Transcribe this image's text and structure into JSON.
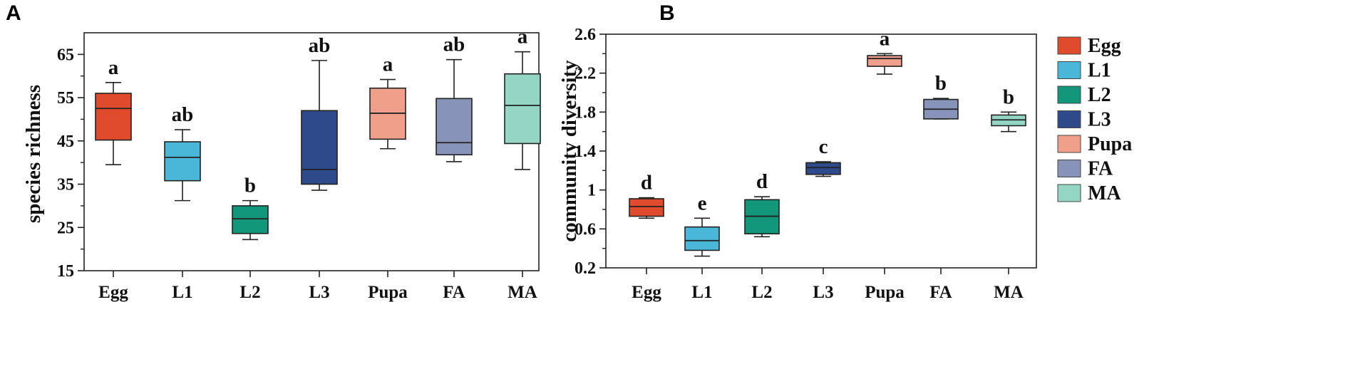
{
  "chart_data": [
    {
      "panel": "A",
      "type": "boxplot",
      "ylabel": "species richness",
      "xlabel": "",
      "ylim": [
        15,
        70
      ],
      "yticks": [
        15,
        25,
        35,
        45,
        55,
        65
      ],
      "ytick_labels": [
        "15",
        "25",
        "35",
        "45",
        "55",
        "65"
      ],
      "categories": [
        "Egg",
        "L1",
        "L2",
        "L3",
        "Pupa",
        "FA",
        "MA"
      ],
      "boxes": [
        {
          "min": 39.5,
          "q1": 45.2,
          "median": 52.5,
          "q3": 56.0,
          "max": 58.5
        },
        {
          "min": 31.2,
          "q1": 35.8,
          "median": 41.2,
          "q3": 44.8,
          "max": 47.6
        },
        {
          "min": 22.2,
          "q1": 23.6,
          "median": 27.0,
          "q3": 30.0,
          "max": 31.2
        },
        {
          "min": 33.6,
          "q1": 35.0,
          "median": 38.4,
          "q3": 52.0,
          "max": 63.6
        },
        {
          "min": 43.2,
          "q1": 45.4,
          "median": 51.4,
          "q3": 57.2,
          "max": 59.2
        },
        {
          "min": 40.2,
          "q1": 41.8,
          "median": 44.6,
          "q3": 54.8,
          "max": 63.8
        },
        {
          "min": 38.4,
          "q1": 44.4,
          "median": 53.2,
          "q3": 60.5,
          "max": 65.6
        }
      ],
      "significance": [
        "a",
        "ab",
        "b",
        "ab",
        "a",
        "ab",
        "a"
      ]
    },
    {
      "panel": "B",
      "type": "boxplot",
      "ylabel": "community diversity",
      "xlabel": "",
      "ylim": [
        0.2,
        2.6
      ],
      "yticks": [
        0.2,
        0.6,
        1.0,
        1.4,
        1.8,
        2.2,
        2.6
      ],
      "ytick_labels": [
        "0.2",
        "0.6",
        "1",
        "1.4",
        "1.8",
        "2.2",
        "2.6"
      ],
      "categories": [
        "Egg",
        "L1",
        "L2",
        "L3",
        "Pupa",
        "FA",
        "MA"
      ],
      "boxes": [
        {
          "min": 0.71,
          "q1": 0.73,
          "median": 0.83,
          "q3": 0.91,
          "max": 0.92
        },
        {
          "min": 0.32,
          "q1": 0.38,
          "median": 0.48,
          "q3": 0.62,
          "max": 0.71
        },
        {
          "min": 0.52,
          "q1": 0.55,
          "median": 0.73,
          "q3": 0.9,
          "max": 0.93
        },
        {
          "min": 1.14,
          "q1": 1.16,
          "median": 1.23,
          "q3": 1.28,
          "max": 1.29
        },
        {
          "min": 2.19,
          "q1": 2.27,
          "median": 2.35,
          "q3": 2.38,
          "max": 2.4
        },
        {
          "min": 1.73,
          "q1": 1.73,
          "median": 1.83,
          "q3": 1.93,
          "max": 1.94
        },
        {
          "min": 1.6,
          "q1": 1.66,
          "median": 1.72,
          "q3": 1.77,
          "max": 1.8
        }
      ],
      "significance": [
        "d",
        "e",
        "d",
        "c",
        "a",
        "b",
        "b"
      ]
    }
  ],
  "legend": {
    "position": "right",
    "entries": [
      {
        "label": "Egg",
        "color": "#e04b2e"
      },
      {
        "label": "L1",
        "color": "#4ab6d8"
      },
      {
        "label": "L2",
        "color": "#12977a"
      },
      {
        "label": "L3",
        "color": "#2f4a8a"
      },
      {
        "label": "Pupa",
        "color": "#f0a08a"
      },
      {
        "label": "FA",
        "color": "#8793b8"
      },
      {
        "label": "MA",
        "color": "#94d5c4"
      }
    ]
  },
  "panel_letters": [
    "A",
    "B"
  ]
}
